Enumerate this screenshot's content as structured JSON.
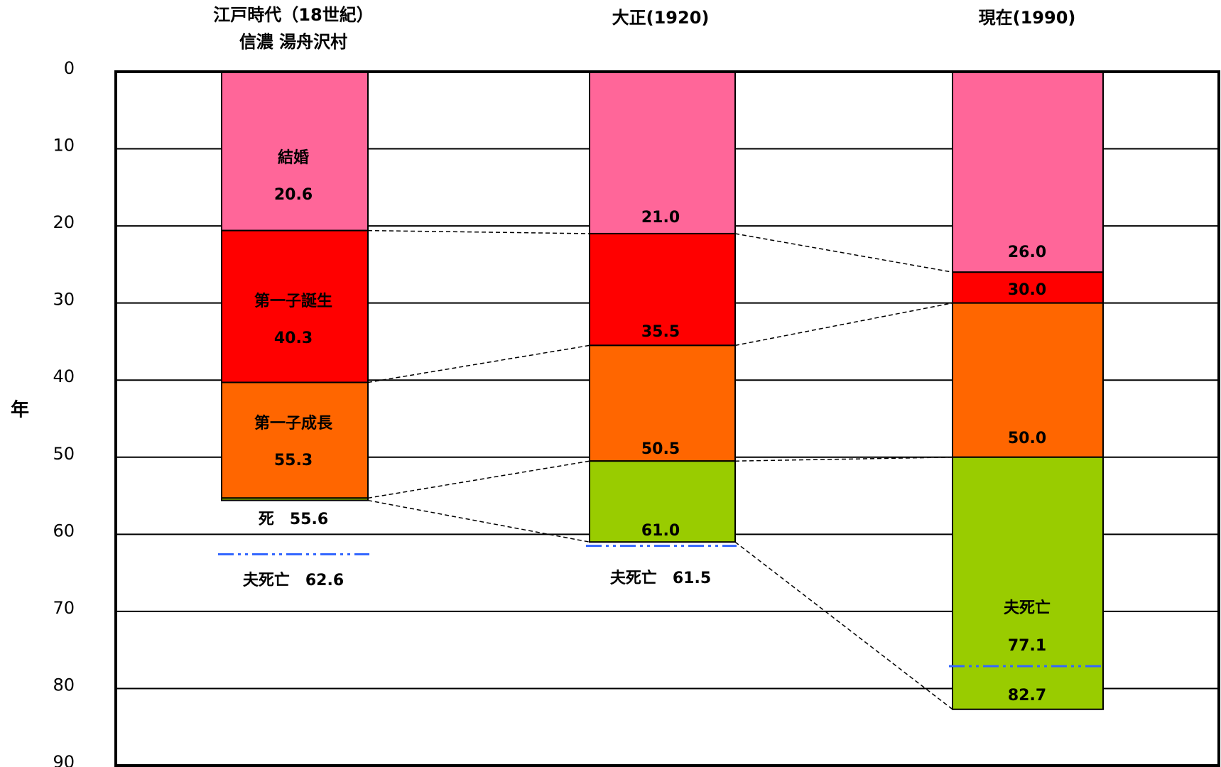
{
  "chart_data": {
    "type": "bar",
    "subtype": "stacked-column-life-stages",
    "ylabel": "年",
    "ylim": [
      0,
      90
    ],
    "y_inverted": true,
    "yticks": [
      0,
      10,
      20,
      30,
      40,
      50,
      60,
      70,
      80,
      90
    ],
    "grid": true,
    "colors": {
      "marriage": "#FF6699",
      "first_child_birth": "#FF0000",
      "first_child_growth": "#FF6600",
      "after": "#99CC00",
      "husband_death_line": "#3366FF"
    },
    "columns": [
      {
        "title_lines": [
          "江戸時代（18世紀）",
          "信濃 湯舟沢村"
        ],
        "marriage": 20.6,
        "first_child_birth": 40.3,
        "first_child_growth": 55.3,
        "death": 55.6,
        "husband_death": 62.6,
        "labels": {
          "marriage_name": "結婚",
          "marriage": "20.6",
          "birth_name": "第一子誕生",
          "birth": "40.3",
          "growth_name": "第一子成長",
          "growth": "55.3",
          "death": "死　55.6",
          "husband_death": "夫死亡　62.6"
        }
      },
      {
        "title_lines": [
          "大正(1920)"
        ],
        "marriage": 21.0,
        "first_child_birth": 35.5,
        "first_child_growth": 50.5,
        "death": 61.0,
        "husband_death": 61.5,
        "labels": {
          "marriage": "21.0",
          "birth": "35.5",
          "growth": "50.5",
          "death": "61.0",
          "husband_death": "夫死亡　61.5"
        }
      },
      {
        "title_lines": [
          "現在(1990)"
        ],
        "marriage": 26.0,
        "first_child_birth": 30.0,
        "first_child_growth": 50.0,
        "husband_death": 77.1,
        "death": 82.7,
        "labels": {
          "marriage": "26.0",
          "birth": "30.0",
          "growth": "50.0",
          "husband_death_name": "夫死亡",
          "husband_death": "77.1",
          "death": "82.7"
        }
      }
    ]
  }
}
